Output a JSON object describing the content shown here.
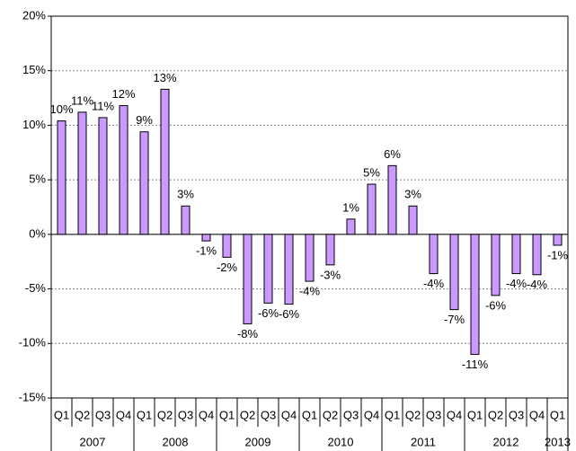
{
  "chart_data": {
    "type": "bar",
    "groups": [
      {
        "label": "2007",
        "categories": [
          "Q1",
          "Q2",
          "Q3",
          "Q4"
        ]
      },
      {
        "label": "2008",
        "categories": [
          "Q1",
          "Q2",
          "Q3",
          "Q4"
        ]
      },
      {
        "label": "2009",
        "categories": [
          "Q1",
          "Q2",
          "Q3",
          "Q4"
        ]
      },
      {
        "label": "2010",
        "categories": [
          "Q1",
          "Q2",
          "Q3",
          "Q4"
        ]
      },
      {
        "label": "2011",
        "categories": [
          "Q1",
          "Q2",
          "Q3",
          "Q4"
        ]
      },
      {
        "label": "2012",
        "categories": [
          "Q1",
          "Q2",
          "Q3",
          "Q4"
        ]
      },
      {
        "label": "2013",
        "categories": [
          "Q1"
        ]
      }
    ],
    "values": [
      10.4,
      11.2,
      10.7,
      11.8,
      9.4,
      13.3,
      2.6,
      -0.6,
      -2.1,
      -8.2,
      -6.3,
      -6.4,
      -4.3,
      -2.8,
      1.4,
      4.6,
      6.3,
      2.6,
      -3.6,
      -6.9,
      -11.0,
      -5.6,
      -3.6,
      -3.7,
      -1.0
    ],
    "value_labels": [
      "10%",
      "11%",
      "11%",
      "12%",
      "9%",
      "13%",
      "3%",
      "-1%",
      "-2%",
      "-8%",
      "-6%",
      "-6%",
      "-4%",
      "-3%",
      "1%",
      "5%",
      "6%",
      "3%",
      "-4%",
      "-7%",
      "-11%",
      "-6%",
      "-4%",
      "-4%",
      "-1%"
    ],
    "color": "#cc99ff",
    "ylim": [
      -15,
      20
    ],
    "yticks": [
      {
        "value": -15,
        "label": "-15%"
      },
      {
        "value": -10,
        "label": "-10%"
      },
      {
        "value": -5,
        "label": "-5%"
      },
      {
        "value": 0,
        "label": "0%"
      },
      {
        "value": 5,
        "label": "5%"
      },
      {
        "value": 10,
        "label": "10%"
      },
      {
        "value": 15,
        "label": "15%"
      },
      {
        "value": 20,
        "label": "20%"
      }
    ],
    "grid": true
  }
}
